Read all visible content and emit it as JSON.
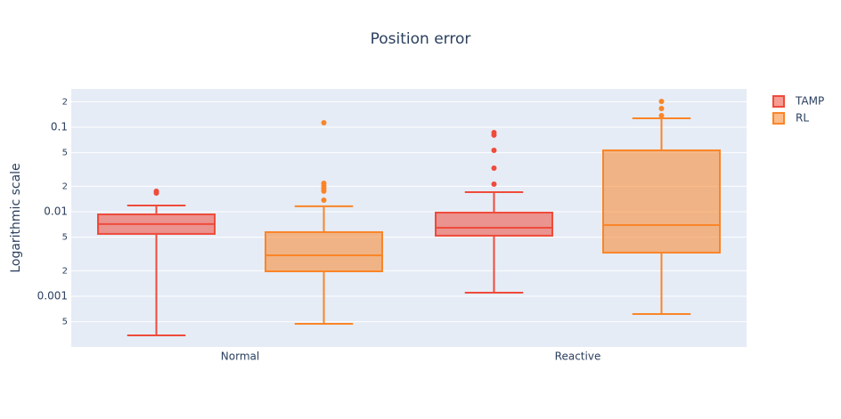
{
  "chart_data": {
    "type": "box",
    "title": "Position error",
    "y_label": "Logarithmic scale",
    "log_y": true,
    "grid": true,
    "categories": [
      "Normal",
      "Reactive"
    ],
    "ylim": [
      0.000251,
      0.2835
    ],
    "yticks": [
      {
        "value": 0.2,
        "label": "2"
      },
      0.1,
      {
        "value": 0.05,
        "label": "5"
      },
      {
        "value": 0.02,
        "label": "2"
      },
      0.01,
      {
        "value": 0.005,
        "label": "5"
      },
      {
        "value": 0.002,
        "label": "2"
      },
      0.001,
      {
        "value": 0.0005,
        "label": "5"
      }
    ],
    "series": [
      {
        "name": "TAMP",
        "color": "#ef4b3b",
        "boxes": [
          {
            "lowerfence": 0.000344,
            "q1": 0.00546,
            "median": 0.00713,
            "q3": 0.0093,
            "upperfence": 0.01186,
            "outliers": [
              0.01746,
              0.01664
            ]
          },
          {
            "lowerfence": 0.0011,
            "q1": 0.0052,
            "median": 0.00647,
            "q3": 0.00976,
            "upperfence": 0.01705,
            "outliers": [
              0.0865,
              0.0806,
              0.0532,
              0.0328,
              0.0212
            ]
          }
        ]
      },
      {
        "name": "RL",
        "color": "#fa8528",
        "boxes": [
          {
            "lowerfence": 0.000472,
            "q1": 0.00197,
            "median": 0.00305,
            "q3": 0.00573,
            "upperfence": 0.0116,
            "outliers": [
              0.113,
              0.0217,
              0.0202,
              0.0188,
              0.0175,
              0.0137
            ]
          },
          {
            "lowerfence": 0.000616,
            "q1": 0.00328,
            "median": 0.00695,
            "q3": 0.0532,
            "upperfence": 0.1274,
            "outliers": [
              0.2017,
              0.1664,
              0.1371
            ]
          }
        ]
      }
    ]
  }
}
